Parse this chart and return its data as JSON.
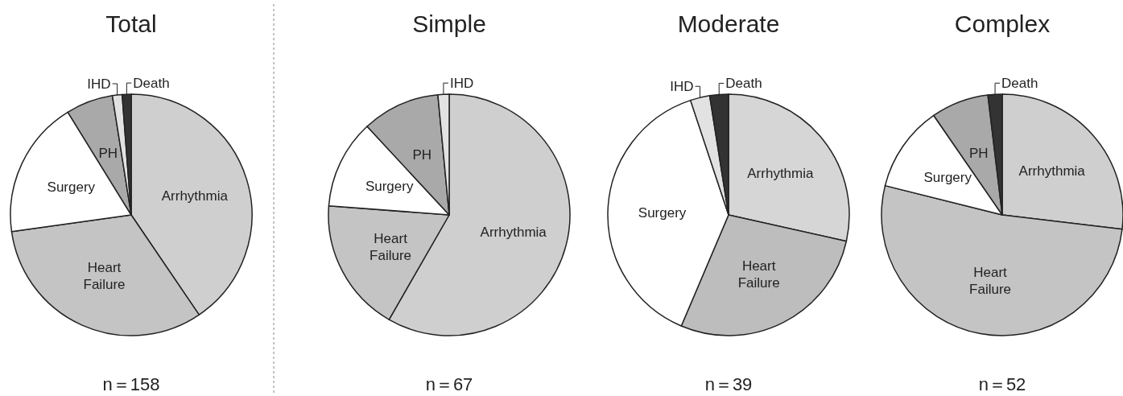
{
  "chart_data": [
    {
      "type": "pie",
      "title": "Total",
      "categories": [
        "Arrhythmia",
        "Heart Failure",
        "Surgery",
        "PH",
        "IHD",
        "Death"
      ],
      "values": [
        40.5,
        32.3,
        18.4,
        6.3,
        1.3,
        1.2
      ],
      "colors": [
        "#cfcfcf",
        "#c4c4c4",
        "#ffffff",
        "#a9a9a9",
        "#e2e2e2",
        "#333333"
      ],
      "annotations": [
        "n＝158"
      ]
    },
    {
      "type": "pie",
      "title": "Simple",
      "categories": [
        "Arrhythmia",
        "Heart Failure",
        "Surgery",
        "PH",
        "IHD"
      ],
      "values": [
        58.3,
        17.9,
        11.9,
        10.4,
        1.5
      ],
      "colors": [
        "#cfcfcf",
        "#c4c4c4",
        "#ffffff",
        "#a9a9a9",
        "#e2e2e2"
      ],
      "annotations": [
        "n＝67"
      ]
    },
    {
      "type": "pie",
      "title": "Moderate",
      "categories": [
        "Arrhythmia",
        "Heart Failure",
        "Surgery",
        "IHD",
        "Death"
      ],
      "values": [
        28.5,
        27.9,
        38.5,
        2.6,
        2.5
      ],
      "colors": [
        "#d6d6d6",
        "#bdbdbd",
        "#ffffff",
        "#e2e2e2",
        "#333333"
      ],
      "annotations": [
        "n＝39"
      ]
    },
    {
      "type": "pie",
      "title": "Complex",
      "categories": [
        "Arrhythmia",
        "Heart Failure",
        "Surgery",
        "PH",
        "Death"
      ],
      "values": [
        26.9,
        52.0,
        11.5,
        7.7,
        1.9
      ],
      "colors": [
        "#cfcfcf",
        "#c4c4c4",
        "#ffffff",
        "#a9a9a9",
        "#333333"
      ],
      "annotations": [
        "n＝52"
      ]
    }
  ]
}
